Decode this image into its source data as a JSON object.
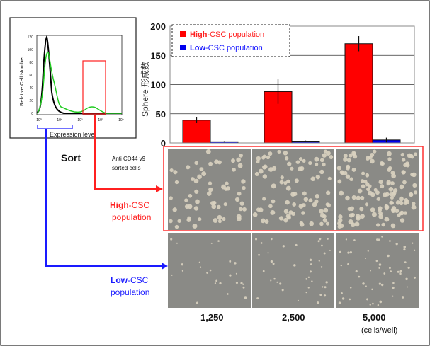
{
  "histogram": {
    "ylabel": "Relative Cell Number",
    "yticks": [
      "0",
      "20",
      "40",
      "60",
      "80",
      "100",
      "120"
    ],
    "xticks": [
      "10⁰",
      "10¹",
      "10²",
      "10³",
      "10⁴"
    ],
    "xlabel": "Expression level"
  },
  "sort_label": "Sort",
  "sorted_note": [
    "Anti CD44 v9",
    "sorted cells"
  ],
  "high_label": {
    "bold": "High",
    "rest": "-CSC",
    "line2": "population",
    "color": "#ff2020"
  },
  "low_label": {
    "bold": "Low",
    "rest": "-CSC",
    "line2": "population",
    "color": "#1a1aff"
  },
  "cell_counts": [
    "1,250",
    "2,500",
    "5,000"
  ],
  "cell_unit": "(cells/well)",
  "chart_data": {
    "type": "bar",
    "ylabel": "Sphere 形成数",
    "ylim": [
      0,
      200
    ],
    "yticks": [
      0,
      50,
      100,
      150,
      200
    ],
    "grid": true,
    "legend_placement": "top-left",
    "categories": [
      "1,250",
      "2,500",
      "5,000"
    ],
    "series": [
      {
        "name": "High-CSC population",
        "name_bold": "High",
        "name_rest": "-CSC population",
        "color": "#ff0000",
        "values": [
          39,
          88,
          170
        ],
        "errors": [
          5,
          21,
          13
        ]
      },
      {
        "name": "Low-CSC population",
        "name_bold": "Low",
        "name_rest": "-CSC population",
        "color": "#0000ee",
        "values": [
          2,
          3,
          5
        ],
        "errors": [
          1,
          1,
          4
        ]
      }
    ]
  }
}
